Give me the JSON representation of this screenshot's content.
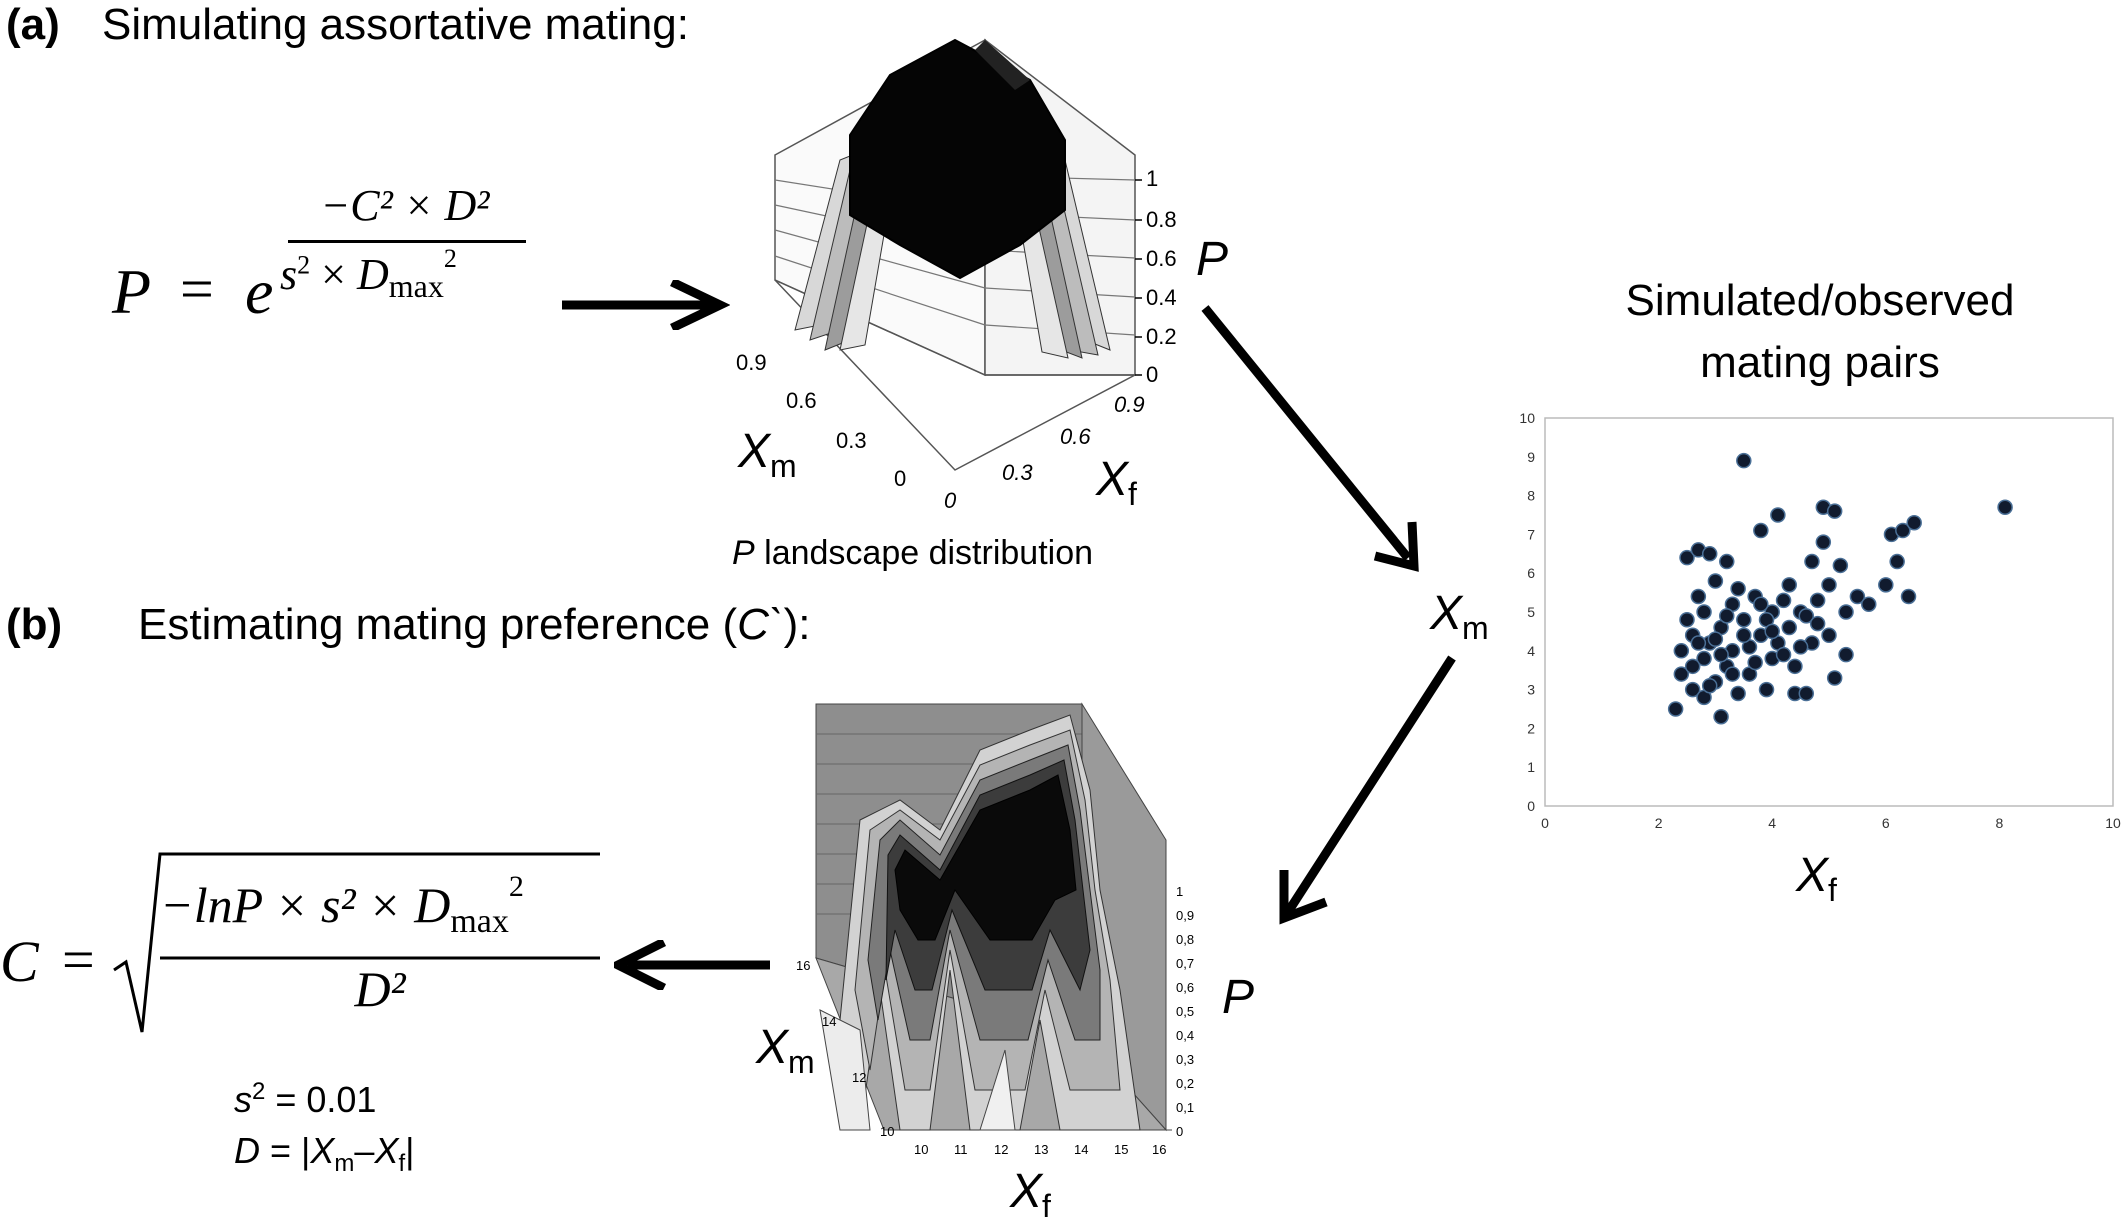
{
  "panel_a": {
    "label": "(a)",
    "heading": "Simulating assortative mating:",
    "formula": {
      "lhs": "P",
      "eq": "=",
      "base": "e",
      "exp_numerator": "−C² × D²",
      "exp_denominator_s": "s",
      "exp_denominator_x": "×",
      "exp_denominator_d": "D",
      "exp_denominator_sub": "max",
      "exp_denominator_pow": "2"
    },
    "surface": {
      "z_label": "P",
      "z_ticks": [
        "0",
        "0.2",
        "0.4",
        "0.6",
        "0.8",
        "1"
      ],
      "xm_label": "X",
      "xm_sub": "m",
      "xm_ticks": [
        "0",
        "0.3",
        "0.6",
        "0.9"
      ],
      "xf_label": "X",
      "xf_sub": "f",
      "xf_ticks": [
        "0",
        "0.3",
        "0.6",
        "0.9"
      ],
      "caption_var": "P",
      "caption_rest": " landscape distribution"
    }
  },
  "scatter": {
    "title_line1": "Simulated/observed",
    "title_line2": "mating pairs",
    "y_label": "X",
    "y_sub": "m",
    "x_label": "X",
    "x_sub": "f",
    "chart_data": {
      "type": "scatter",
      "x_ticks": [
        "0",
        "2",
        "4",
        "6",
        "8",
        "10"
      ],
      "y_ticks": [
        "0",
        "1",
        "2",
        "3",
        "4",
        "5",
        "6",
        "7",
        "8",
        "9",
        "10"
      ],
      "xlim": [
        0,
        10
      ],
      "ylim": [
        0,
        10
      ],
      "points": [
        [
          2.3,
          2.5
        ],
        [
          2.4,
          3.4
        ],
        [
          2.4,
          4.0
        ],
        [
          2.5,
          6.4
        ],
        [
          2.5,
          4.8
        ],
        [
          2.6,
          3.0
        ],
        [
          2.6,
          4.4
        ],
        [
          2.7,
          6.6
        ],
        [
          2.7,
          5.4
        ],
        [
          2.8,
          2.8
        ],
        [
          2.8,
          3.8
        ],
        [
          2.8,
          5.0
        ],
        [
          2.9,
          6.5
        ],
        [
          2.9,
          4.2
        ],
        [
          3.0,
          3.2
        ],
        [
          3.0,
          5.8
        ],
        [
          3.1,
          2.3
        ],
        [
          3.1,
          4.6
        ],
        [
          3.2,
          6.3
        ],
        [
          3.2,
          3.6
        ],
        [
          3.3,
          5.2
        ],
        [
          3.3,
          4.0
        ],
        [
          3.4,
          2.9
        ],
        [
          3.5,
          8.9
        ],
        [
          3.5,
          4.8
        ],
        [
          3.6,
          3.4
        ],
        [
          3.7,
          5.4
        ],
        [
          3.8,
          7.1
        ],
        [
          3.8,
          4.4
        ],
        [
          3.9,
          3.0
        ],
        [
          4.0,
          5.0
        ],
        [
          4.0,
          3.8
        ],
        [
          4.1,
          7.5
        ],
        [
          4.1,
          4.2
        ],
        [
          4.2,
          5.3
        ],
        [
          4.3,
          4.6
        ],
        [
          4.4,
          3.6
        ],
        [
          4.4,
          2.9
        ],
        [
          4.5,
          5.0
        ],
        [
          4.6,
          2.9
        ],
        [
          4.7,
          6.3
        ],
        [
          4.7,
          4.2
        ],
        [
          4.8,
          5.3
        ],
        [
          4.9,
          7.7
        ],
        [
          4.9,
          6.8
        ],
        [
          5.0,
          4.4
        ],
        [
          5.0,
          5.7
        ],
        [
          5.1,
          3.3
        ],
        [
          5.1,
          7.6
        ],
        [
          5.2,
          6.2
        ],
        [
          5.3,
          3.9
        ],
        [
          5.3,
          5.0
        ],
        [
          5.5,
          5.4
        ],
        [
          5.7,
          5.2
        ],
        [
          6.0,
          5.7
        ],
        [
          6.1,
          7.0
        ],
        [
          6.2,
          6.3
        ],
        [
          6.3,
          7.1
        ],
        [
          6.4,
          5.4
        ],
        [
          6.5,
          7.3
        ],
        [
          8.1,
          7.7
        ],
        [
          2.6,
          3.6
        ],
        [
          2.9,
          3.1
        ],
        [
          3.0,
          4.3
        ],
        [
          3.2,
          4.9
        ],
        [
          3.4,
          5.6
        ],
        [
          3.6,
          4.1
        ],
        [
          3.7,
          3.7
        ],
        [
          3.9,
          4.8
        ],
        [
          4.2,
          3.9
        ],
        [
          4.3,
          5.7
        ],
        [
          4.6,
          4.9
        ],
        [
          2.7,
          4.2
        ],
        [
          3.1,
          3.9
        ],
        [
          3.3,
          3.4
        ],
        [
          3.5,
          4.4
        ],
        [
          3.8,
          5.2
        ],
        [
          4.0,
          4.5
        ],
        [
          4.5,
          4.1
        ],
        [
          4.8,
          4.7
        ]
      ]
    }
  },
  "panel_b": {
    "label": "(b)",
    "heading_pre": "Estimating mating preference (",
    "heading_var": "C`",
    "heading_post": "):",
    "formula": {
      "lhs": "C",
      "eq": "=",
      "numerator": "−lnP × s² × D",
      "numerator_sub": "max",
      "numerator_pow": "2",
      "denominator": "D²"
    },
    "s2_var": "s",
    "s2_pow": "2",
    "s2_rest": " = 0.01",
    "d_var": "D",
    "d_rest_open": " = |",
    "d_xm": "X",
    "d_xm_sub": "m",
    "d_dash": "–",
    "d_xf": "X",
    "d_xf_sub": "f",
    "d_close": "|",
    "surface": {
      "z_label": "P",
      "z_ticks": [
        "0",
        "0,1",
        "0,2",
        "0,3",
        "0,4",
        "0,5",
        "0,6",
        "0,7",
        "0,8",
        "0,9",
        "1"
      ],
      "xm_label": "X",
      "xm_sub": "m",
      "xm_ticks": [
        "10",
        "12",
        "14",
        "16"
      ],
      "xf_label": "X",
      "xf_sub": "f",
      "xf_ticks": [
        "10",
        "11",
        "12",
        "13",
        "14",
        "15",
        "16"
      ]
    }
  }
}
